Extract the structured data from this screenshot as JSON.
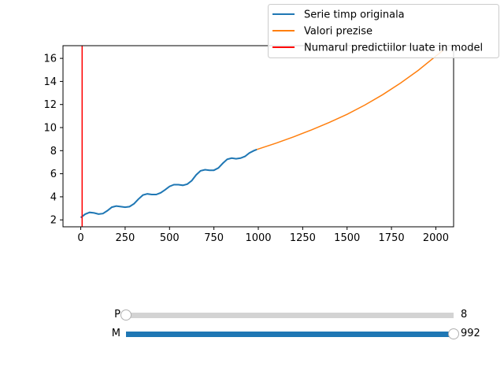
{
  "chart_data": {
    "type": "line",
    "title": "",
    "xlabel": "",
    "ylabel": "",
    "xlim": [
      -100,
      2100
    ],
    "ylim": [
      1.4,
      17.1
    ],
    "x_ticks": [
      0,
      250,
      500,
      750,
      1000,
      1250,
      1500,
      1750,
      2000
    ],
    "x_tick_labels": [
      "0",
      "250",
      "500",
      "750",
      "1000",
      "1250",
      "1500",
      "1750",
      "2000"
    ],
    "y_ticks": [
      2,
      4,
      6,
      8,
      10,
      12,
      14,
      16
    ],
    "y_tick_labels": [
      "2",
      "4",
      "6",
      "8",
      "10",
      "12",
      "14",
      "16"
    ],
    "grid": false,
    "legend_placement": "top-right",
    "series": [
      {
        "name": "Serie timp originala",
        "color": "#1f77b4",
        "x": [
          0,
          25,
          50,
          75,
          100,
          125,
          150,
          175,
          200,
          225,
          250,
          275,
          300,
          325,
          350,
          375,
          400,
          425,
          450,
          475,
          500,
          525,
          550,
          575,
          600,
          625,
          650,
          675,
          700,
          725,
          750,
          775,
          800,
          825,
          850,
          875,
          900,
          925,
          950,
          975,
          992
        ],
        "y": [
          2.2,
          2.5,
          2.65,
          2.6,
          2.5,
          2.55,
          2.8,
          3.1,
          3.2,
          3.15,
          3.1,
          3.15,
          3.4,
          3.8,
          4.15,
          4.25,
          4.2,
          4.2,
          4.35,
          4.6,
          4.9,
          5.05,
          5.05,
          5.0,
          5.1,
          5.4,
          5.9,
          6.25,
          6.35,
          6.3,
          6.3,
          6.5,
          6.9,
          7.25,
          7.35,
          7.3,
          7.35,
          7.5,
          7.8,
          8.0,
          8.1
        ]
      },
      {
        "name": "Valori prezise",
        "color": "#ff7f0e",
        "x": [
          992,
          1100,
          1200,
          1300,
          1400,
          1500,
          1600,
          1700,
          1800,
          1900,
          2000,
          2040
        ],
        "y": [
          8.1,
          8.65,
          9.2,
          9.8,
          10.45,
          11.15,
          11.95,
          12.85,
          13.85,
          14.95,
          16.2,
          16.7
        ]
      },
      {
        "name": "Numarul predictiilor luate in model",
        "color": "#ff0000",
        "x": [
          8,
          8
        ],
        "y": [
          1.4,
          17.1
        ]
      }
    ]
  },
  "sliders": [
    {
      "label": "P",
      "value_text": "8",
      "fraction": 0.0
    },
    {
      "label": "M",
      "value_text": "992",
      "fraction": 1.0
    }
  ],
  "colors": {
    "track": "#d3d3d3",
    "fill": "#1f77b4"
  }
}
